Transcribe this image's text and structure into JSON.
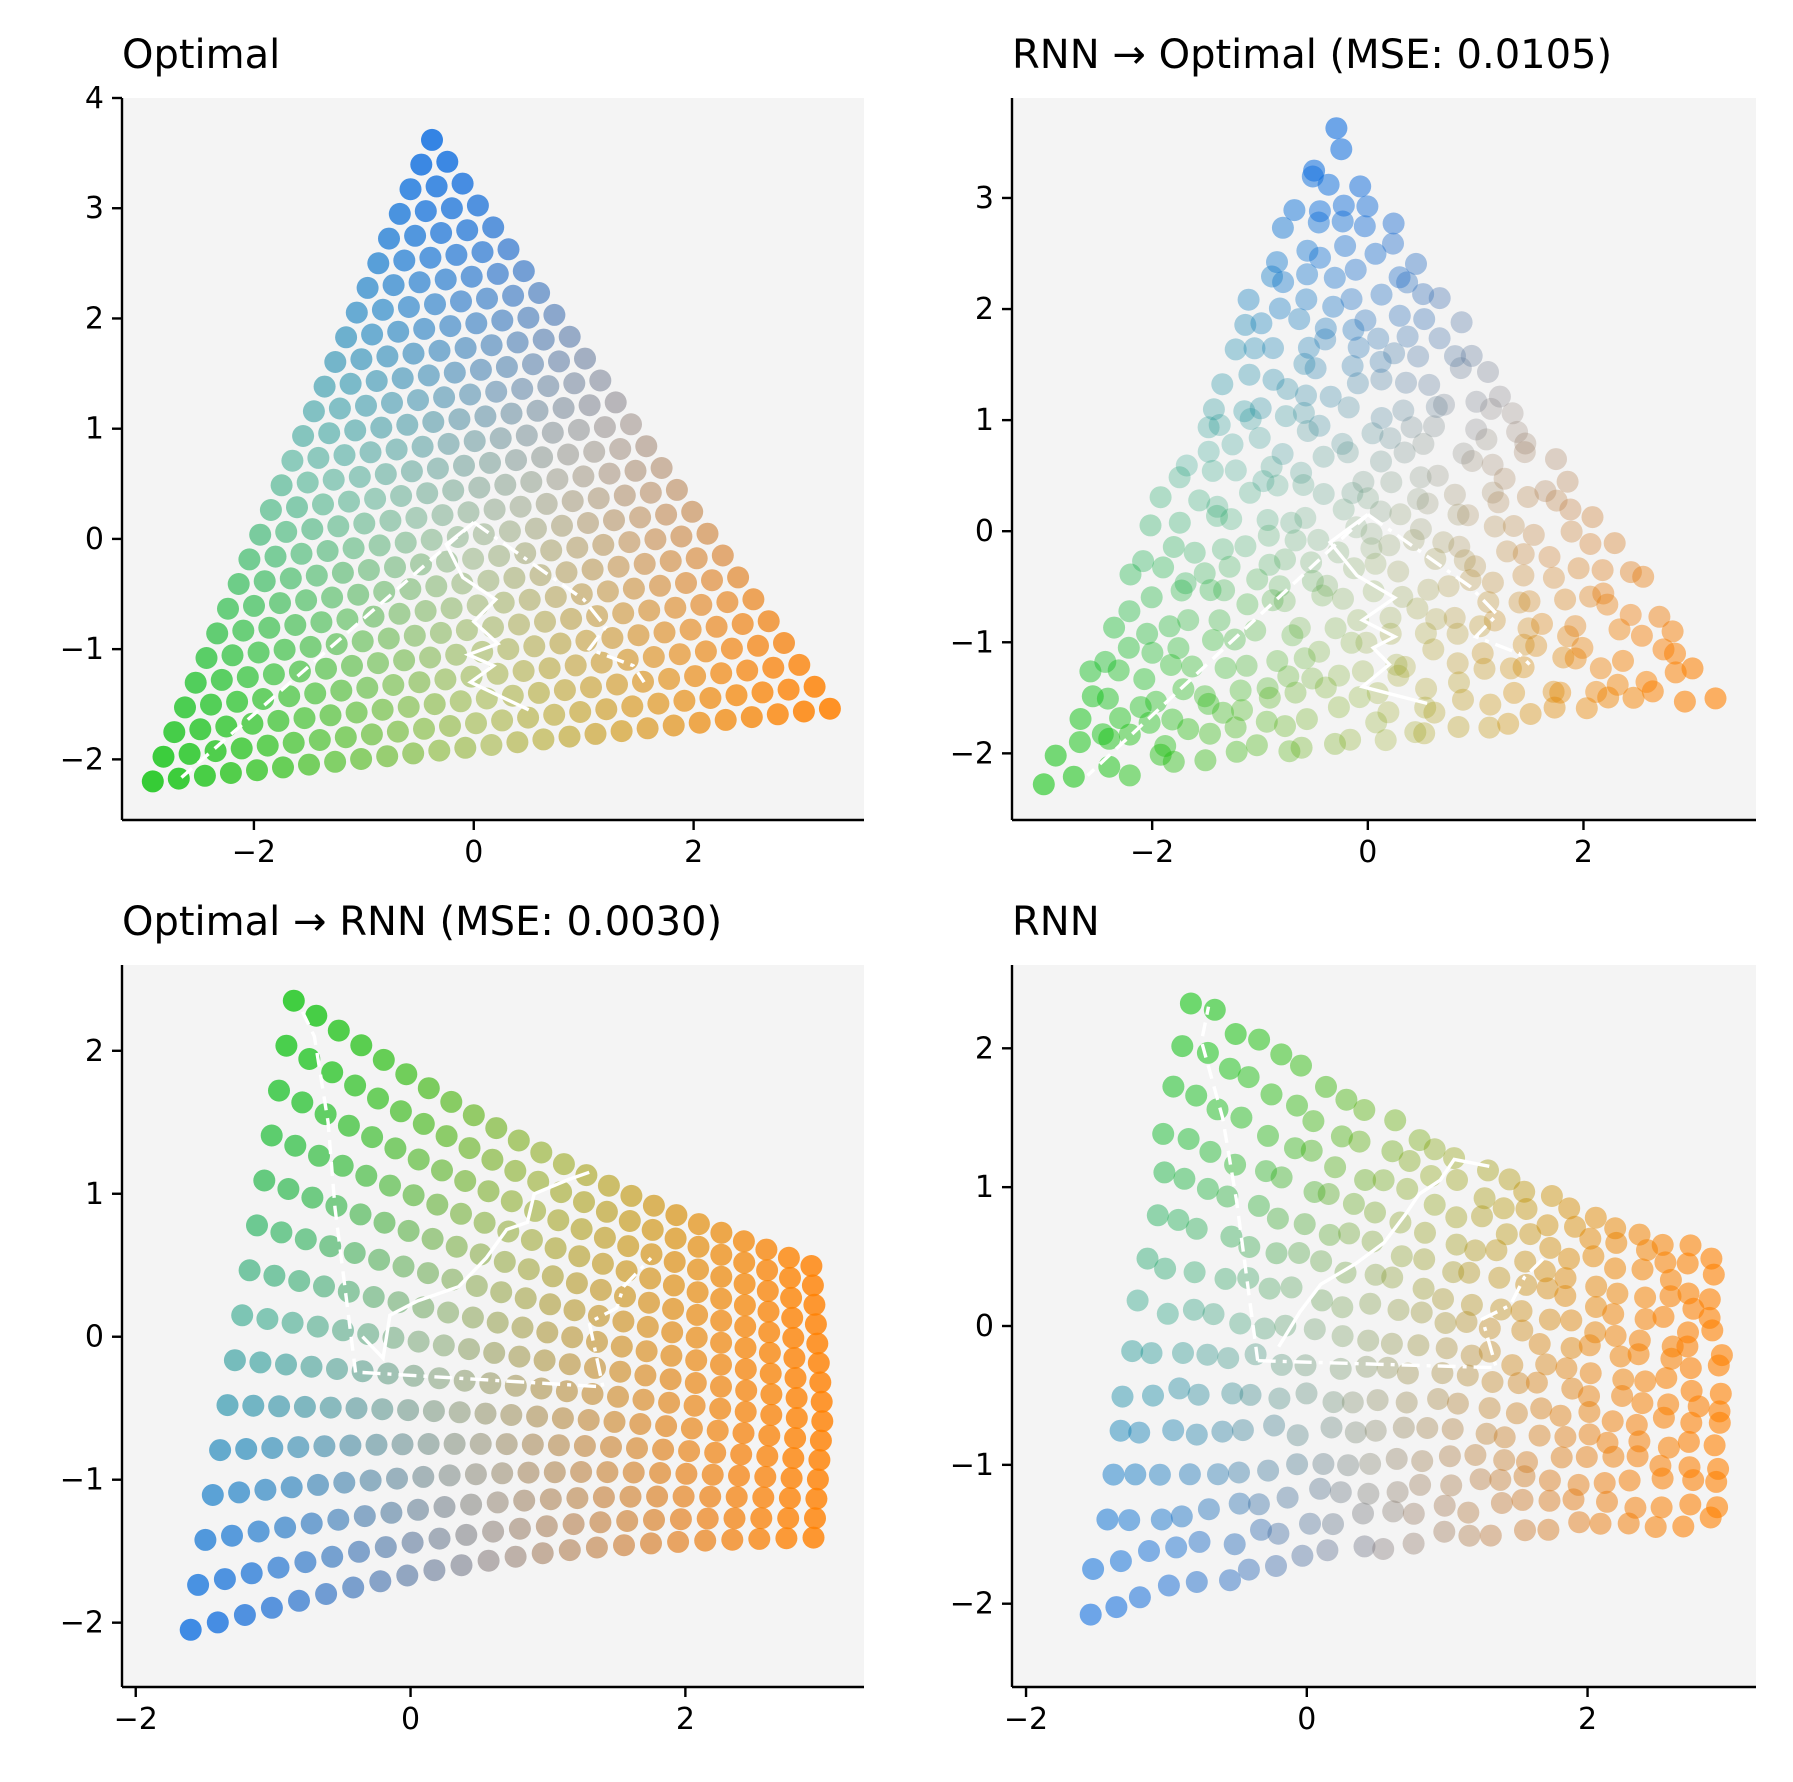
{
  "figure": {
    "colors": {
      "background": "#f4f4f4",
      "blue": "#1270e0",
      "green": "#14c414",
      "orange": "#ff8000",
      "trajectory": "#ffffff"
    }
  },
  "chart_data": [
    {
      "type": "scatter",
      "title": "Optimal",
      "shape": "triangle",
      "xlim": [
        -3.2,
        3.55
      ],
      "ylim": [
        -2.55,
        4.0
      ],
      "xticks": [
        -2,
        0,
        2
      ],
      "xtick_labels": [
        "−2",
        "0",
        "2"
      ],
      "yticks": [
        -2,
        -1,
        0,
        1,
        2,
        3,
        4
      ],
      "ytick_labels": [
        "−2",
        "−1",
        "0",
        "1",
        "2",
        "3",
        "4"
      ],
      "vertices": {
        "blue": [
          -0.38,
          3.62
        ],
        "green": [
          -2.92,
          -2.2
        ],
        "orange": [
          3.24,
          -1.54
        ]
      },
      "trajectories": [
        {
          "style": "solid",
          "x": [
            0.0,
            -0.25,
            -0.1,
            0.2,
            0.0,
            0.22,
            -0.05,
            0.18,
            -0.03,
            0.5
          ],
          "y": [
            0.15,
            -0.05,
            -0.35,
            -0.55,
            -0.75,
            -0.95,
            -1.05,
            -1.15,
            -1.3,
            -1.55
          ]
        },
        {
          "style": "dashed",
          "x": [
            0.0,
            -2.7
          ],
          "y": [
            0.15,
            -2.2
          ]
        },
        {
          "style": "dashdot",
          "x": [
            0.0,
            1.0,
            1.2,
            1.05,
            1.45,
            1.55
          ],
          "y": [
            0.15,
            -0.55,
            -0.8,
            -1.0,
            -1.15,
            -1.3
          ]
        }
      ]
    },
    {
      "type": "scatter",
      "title": "RNN → Optimal (MSE: 0.0105)",
      "shape": "triangle",
      "xlim": [
        -3.3,
        3.6
      ],
      "ylim": [
        -2.6,
        3.9
      ],
      "xticks": [
        -2,
        0,
        2
      ],
      "xtick_labels": [
        "−2",
        "0",
        "2"
      ],
      "yticks": [
        -2,
        -1,
        0,
        1,
        2,
        3
      ],
      "ytick_labels": [
        "−2",
        "−1",
        "0",
        "1",
        "2",
        "3"
      ],
      "vertices": {
        "blue": [
          -0.38,
          3.55
        ],
        "green": [
          -2.92,
          -2.22
        ],
        "orange": [
          3.18,
          -1.45
        ]
      },
      "trajectories": [
        {
          "style": "solid",
          "x": [
            0.0,
            -0.35,
            -0.1,
            0.25,
            -0.05,
            0.25,
            0.05,
            0.2,
            -0.05,
            0.55
          ],
          "y": [
            0.15,
            -0.1,
            -0.4,
            -0.6,
            -0.8,
            -0.95,
            -1.05,
            -1.2,
            -1.4,
            -1.55
          ]
        },
        {
          "style": "dashed",
          "x": [
            0.0,
            -2.6
          ],
          "y": [
            0.15,
            -2.2
          ]
        },
        {
          "style": "dashdot",
          "x": [
            0.0,
            0.95,
            1.2,
            1.0,
            1.4,
            1.5
          ],
          "y": [
            0.15,
            -0.5,
            -0.75,
            -0.95,
            -1.1,
            -1.2
          ]
        }
      ]
    },
    {
      "type": "scatter",
      "title": "Optimal → RNN (MSE: 0.0030)",
      "shape": "wedge",
      "xlim": [
        -2.1,
        3.3
      ],
      "ylim": [
        -2.45,
        2.6
      ],
      "xticks": [
        -2,
        0,
        2
      ],
      "xtick_labels": [
        "−2",
        "0",
        "2"
      ],
      "yticks": [
        -2,
        -1,
        0,
        1,
        2
      ],
      "ytick_labels": [
        "−2",
        "−1",
        "0",
        "1",
        "2"
      ],
      "anchors": {
        "green_top": [
          -0.85,
          2.35
        ],
        "blue_bottom": [
          -1.6,
          -2.05
        ],
        "orange_right": [
          3.0,
          -0.55
        ]
      },
      "trajectories": [
        {
          "style": "solid",
          "x": [
            -0.35,
            -0.2,
            -0.15,
            0.05,
            0.35,
            0.55,
            0.7,
            0.85,
            0.9,
            1.15,
            1.3
          ],
          "y": [
            0.0,
            -0.15,
            0.15,
            0.25,
            0.35,
            0.55,
            0.75,
            0.8,
            1.0,
            1.1,
            1.15
          ]
        },
        {
          "style": "dashed",
          "x": [
            -0.4,
            -0.55,
            -0.6,
            -0.7,
            -0.8
          ],
          "y": [
            -0.25,
            0.9,
            1.5,
            2.1,
            2.3
          ]
        },
        {
          "style": "dashdot",
          "x": [
            -0.35,
            1.4,
            1.3,
            1.5,
            1.55,
            1.75
          ],
          "y": [
            -0.25,
            -0.35,
            0.1,
            0.2,
            0.35,
            0.55
          ]
        }
      ]
    },
    {
      "type": "scatter",
      "title": "RNN",
      "shape": "wedge",
      "xlim": [
        -2.1,
        3.2
      ],
      "ylim": [
        -2.6,
        2.6
      ],
      "xticks": [
        -2,
        0,
        2
      ],
      "xtick_labels": [
        "−2",
        "0",
        "2"
      ],
      "yticks": [
        -2,
        -1,
        0,
        1,
        2
      ],
      "ytick_labels": [
        "−2",
        "−1",
        "0",
        "1",
        "2"
      ],
      "anchors": {
        "green_top": [
          -0.85,
          2.35
        ],
        "blue_bottom": [
          -1.55,
          -2.05
        ],
        "orange_right": [
          2.95,
          -0.55
        ]
      },
      "trajectories": [
        {
          "style": "solid",
          "x": [
            -0.2,
            -0.05,
            0.1,
            0.35,
            0.55,
            0.7,
            0.8,
            0.95,
            1.05,
            1.3
          ],
          "y": [
            -0.15,
            0.1,
            0.3,
            0.45,
            0.6,
            0.8,
            0.95,
            1.05,
            1.2,
            1.15
          ]
        },
        {
          "style": "dashed",
          "x": [
            -0.35,
            -0.5,
            -0.6,
            -0.75,
            -0.7
          ],
          "y": [
            -0.25,
            0.9,
            1.5,
            2.05,
            2.3
          ]
        },
        {
          "style": "dashdot",
          "x": [
            -0.35,
            1.35,
            1.25,
            1.45,
            1.55,
            1.7
          ],
          "y": [
            -0.25,
            -0.3,
            0.05,
            0.15,
            0.35,
            0.5
          ]
        }
      ]
    }
  ]
}
